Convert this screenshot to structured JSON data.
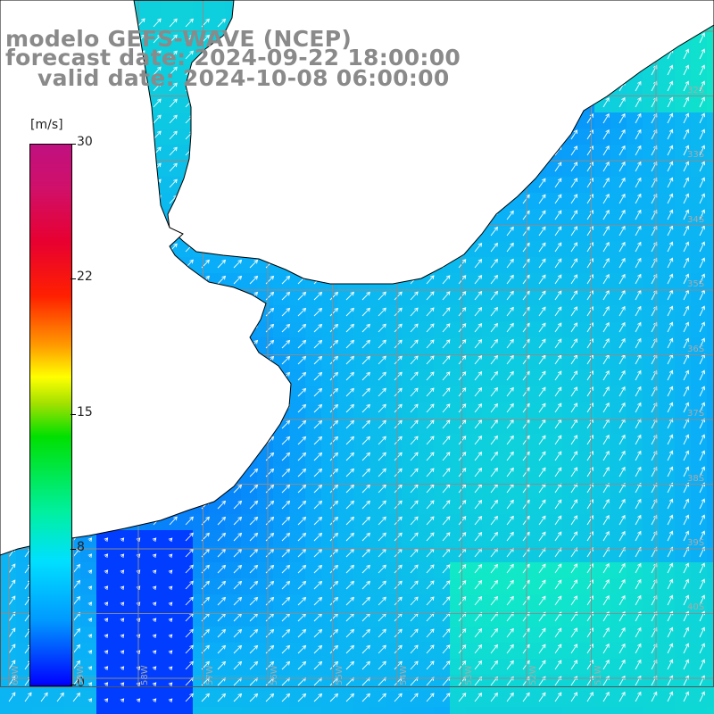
{
  "title": {
    "model": "modelo GEFS-WAVE (NCEP)",
    "forecast": "forecast date: 2024-09-22 18:00:00",
    "valid": "valid date: 2024-10-08 06:00:00"
  },
  "colorbar": {
    "unit": "[m/s]",
    "min": 0,
    "max": 30,
    "ticks": [
      "30",
      "22",
      "15",
      "8",
      "0"
    ],
    "colors": [
      "#0000ff",
      "#0099ff",
      "#00e0ff",
      "#00f0a0",
      "#00e000",
      "#a0e000",
      "#ffff00",
      "#ff9900",
      "#ff2000",
      "#e80030",
      "#c01080"
    ]
  },
  "lat_labels": [
    "32S",
    "33S",
    "34S",
    "35S",
    "36S",
    "37S",
    "38S",
    "39S",
    "40S"
  ],
  "lon_labels": [
    "60W",
    "59W",
    "58W",
    "57W",
    "56W",
    "55W",
    "54W",
    "53W",
    "52W",
    "51W"
  ],
  "map_colors": {
    "land": "#ffffff",
    "coastline": "#000000",
    "grid": "#8c8c8c",
    "arrow": "#ffffff",
    "field_low": "#0030ff",
    "field_mid": "#0aaef8",
    "field_high": "#10e8c8"
  }
}
